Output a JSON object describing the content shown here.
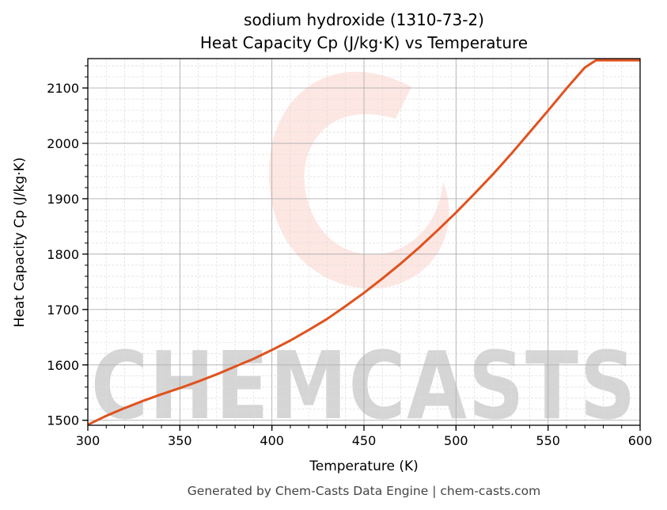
{
  "chart_data": {
    "type": "line",
    "title": [
      "sodium hydroxide (1310-73-2)",
      "Heat Capacity Cp (J/kg·K) vs Temperature"
    ],
    "xlabel": "Temperature (K)",
    "ylabel": "Heat Capacity Cp (J/kg·K)",
    "xlim": [
      300,
      600
    ],
    "ylim": [
      1491,
      2153
    ],
    "xticks": [
      300,
      350,
      400,
      450,
      500,
      550,
      600
    ],
    "yticks": [
      1500,
      1600,
      1700,
      1800,
      1900,
      2000,
      2100
    ],
    "grid": true,
    "series": [
      {
        "name": "Cp",
        "color": "#e0521e",
        "x": [
          300,
          310,
          320,
          330,
          340,
          350,
          360,
          370,
          380,
          390,
          400,
          410,
          420,
          430,
          440,
          450,
          460,
          470,
          480,
          490,
          500,
          510,
          520,
          530,
          540,
          550,
          560,
          570,
          576,
          580,
          590,
          600
        ],
        "y": [
          1492,
          1508,
          1522,
          1535,
          1547,
          1558,
          1570,
          1583,
          1597,
          1611,
          1627,
          1644,
          1663,
          1683,
          1706,
          1730,
          1756,
          1783,
          1812,
          1843,
          1875,
          1909,
          1944,
          1981,
          2020,
          2059,
          2099,
          2137,
          2150,
          2150,
          2150,
          2150
        ]
      }
    ],
    "watermark": "CHEMCASTS"
  },
  "footer": "Generated by Chem-Casts Data Engine | chem-casts.com"
}
